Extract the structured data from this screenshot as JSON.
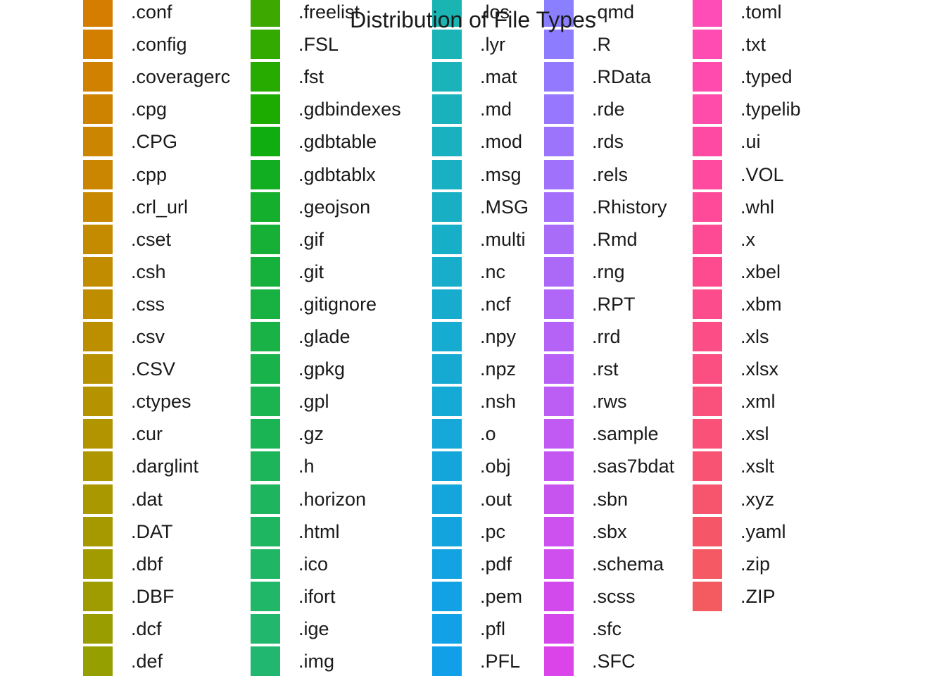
{
  "chart_data": {
    "type": "legend",
    "title": "Distribution of File Types",
    "legend_columns": [
      {
        "items": [
          {
            "label": ".conf",
            "color": "#D47D00"
          },
          {
            "label": ".config",
            "color": "#D27F00"
          },
          {
            "label": ".coveragerc",
            "color": "#D08100"
          },
          {
            "label": ".cpg",
            "color": "#CE8300"
          },
          {
            "label": ".CPG",
            "color": "#CC8500"
          },
          {
            "label": ".cpp",
            "color": "#CA8600"
          },
          {
            "label": ".crl_url",
            "color": "#C78800"
          },
          {
            "label": ".cset",
            "color": "#C48A00"
          },
          {
            "label": ".csh",
            "color": "#C18C00"
          },
          {
            "label": ".css",
            "color": "#BE8E00"
          },
          {
            "label": ".csv",
            "color": "#BB8F00"
          },
          {
            "label": ".CSV",
            "color": "#B89100"
          },
          {
            "label": ".ctypes",
            "color": "#B59300"
          },
          {
            "label": ".cur",
            "color": "#B19400"
          },
          {
            "label": ".darglint",
            "color": "#AE9600"
          },
          {
            "label": ".dat",
            "color": "#AA9800"
          },
          {
            "label": ".DAT",
            "color": "#A69900"
          },
          {
            "label": ".dbf",
            "color": "#A29B00"
          },
          {
            "label": ".DBF",
            "color": "#9E9C00"
          },
          {
            "label": ".dcf",
            "color": "#9A9D00"
          },
          {
            "label": ".def",
            "color": "#959F00"
          }
        ]
      },
      {
        "items": [
          {
            "label": ".freelist",
            "color": "#3DA900"
          },
          {
            "label": ".FSL",
            "color": "#33AA00"
          },
          {
            "label": ".fst",
            "color": "#28AB00"
          },
          {
            "label": ".gdbindexes",
            "color": "#1CAC00"
          },
          {
            "label": ".gdbtable",
            "color": "#10AD10"
          },
          {
            "label": ".gdbtablx",
            "color": "#12AE22"
          },
          {
            "label": ".geojson",
            "color": "#14AF2D"
          },
          {
            "label": ".gif",
            "color": "#15B035"
          },
          {
            "label": ".git",
            "color": "#16B13C"
          },
          {
            "label": ".gitignore",
            "color": "#17B242"
          },
          {
            "label": ".glade",
            "color": "#18B247"
          },
          {
            "label": ".gpkg",
            "color": "#19B34C"
          },
          {
            "label": ".gpl",
            "color": "#1AB451"
          },
          {
            "label": ".gz",
            "color": "#1BB455"
          },
          {
            "label": ".h",
            "color": "#1CB559"
          },
          {
            "label": ".horizon",
            "color": "#1DB55D"
          },
          {
            "label": ".html",
            "color": "#1EB661"
          },
          {
            "label": ".ico",
            "color": "#1FB665"
          },
          {
            "label": ".ifort",
            "color": "#20B769"
          },
          {
            "label": ".ige",
            "color": "#21B76C"
          },
          {
            "label": ".img",
            "color": "#22B770"
          }
        ]
      },
      {
        "items": [
          {
            "label": ".los",
            "color": "#1AB5B3"
          },
          {
            "label": ".lyr",
            "color": "#1AB4B6"
          },
          {
            "label": ".mat",
            "color": "#1AB3B9"
          },
          {
            "label": ".md",
            "color": "#19B2BC"
          },
          {
            "label": ".mod",
            "color": "#19B1BF"
          },
          {
            "label": ".msg",
            "color": "#18B0C2"
          },
          {
            "label": ".MSG",
            "color": "#18AFC5"
          },
          {
            "label": ".multi",
            "color": "#17AEC8"
          },
          {
            "label": ".nc",
            "color": "#17ADCB"
          },
          {
            "label": ".ncf",
            "color": "#17ACCE"
          },
          {
            "label": ".npy",
            "color": "#16ABD1"
          },
          {
            "label": ".npz",
            "color": "#16AAD3"
          },
          {
            "label": ".nsh",
            "color": "#15A9D6"
          },
          {
            "label": ".o",
            "color": "#15A8D8"
          },
          {
            "label": ".obj",
            "color": "#14A6DB"
          },
          {
            "label": ".out",
            "color": "#14A5DD"
          },
          {
            "label": ".pc",
            "color": "#13A4E0"
          },
          {
            "label": ".pdf",
            "color": "#13A3E2"
          },
          {
            "label": ".pem",
            "color": "#12A1E5"
          },
          {
            "label": ".pfl",
            "color": "#12A0E7"
          },
          {
            "label": ".PFL",
            "color": "#119FE9"
          }
        ]
      },
      {
        "items": [
          {
            "label": ".qmd",
            "color": "#8A7FFF"
          },
          {
            "label": ".R",
            "color": "#8E7CFF"
          },
          {
            "label": ".RData",
            "color": "#9379FE"
          },
          {
            "label": ".rde",
            "color": "#9777FD"
          },
          {
            "label": ".rds",
            "color": "#9C74FC"
          },
          {
            "label": ".rels",
            "color": "#A072FB"
          },
          {
            "label": ".Rhistory",
            "color": "#A46FFA"
          },
          {
            "label": ".Rmd",
            "color": "#A86CF9"
          },
          {
            "label": ".rng",
            "color": "#AC69F8"
          },
          {
            "label": ".RPT",
            "color": "#B066F7"
          },
          {
            "label": ".rrd",
            "color": "#B463F6"
          },
          {
            "label": ".rst",
            "color": "#B860F5"
          },
          {
            "label": ".rws",
            "color": "#BC5DF4"
          },
          {
            "label": ".sample",
            "color": "#C05AF3"
          },
          {
            "label": ".sas7bdat",
            "color": "#C457F2"
          },
          {
            "label": ".sbn",
            "color": "#C854F0"
          },
          {
            "label": ".sbx",
            "color": "#CC51EF"
          },
          {
            "label": ".schema",
            "color": "#CF4EEE"
          },
          {
            "label": ".scss",
            "color": "#D34AEC"
          },
          {
            "label": ".sfc",
            "color": "#D647EB"
          },
          {
            "label": ".SFC",
            "color": "#DA44E9"
          }
        ]
      },
      {
        "items": [
          {
            "label": ".toml",
            "color": "#FF4DB8"
          },
          {
            "label": ".txt",
            "color": "#FF4CB3"
          },
          {
            "label": ".typed",
            "color": "#FF4BAE"
          },
          {
            "label": ".typelib",
            "color": "#FF4BA9"
          },
          {
            "label": ".ui",
            "color": "#FF4AA4"
          },
          {
            "label": ".VOL",
            "color": "#FF4A9F"
          },
          {
            "label": ".whl",
            "color": "#FF4A9A"
          },
          {
            "label": ".x",
            "color": "#FE4A95"
          },
          {
            "label": ".xbel",
            "color": "#FE4B90"
          },
          {
            "label": ".xbm",
            "color": "#FD4C8B"
          },
          {
            "label": ".xls",
            "color": "#FC4D86"
          },
          {
            "label": ".xlsx",
            "color": "#FB4E81"
          },
          {
            "label": ".xml",
            "color": "#FA507C"
          },
          {
            "label": ".xsl",
            "color": "#F95177"
          },
          {
            "label": ".xslt",
            "color": "#F85372"
          },
          {
            "label": ".xyz",
            "color": "#F7556E"
          },
          {
            "label": ".yaml",
            "color": "#F55769"
          },
          {
            "label": ".zip",
            "color": "#F45964"
          },
          {
            "label": ".ZIP",
            "color": "#F35B60"
          }
        ]
      }
    ]
  }
}
